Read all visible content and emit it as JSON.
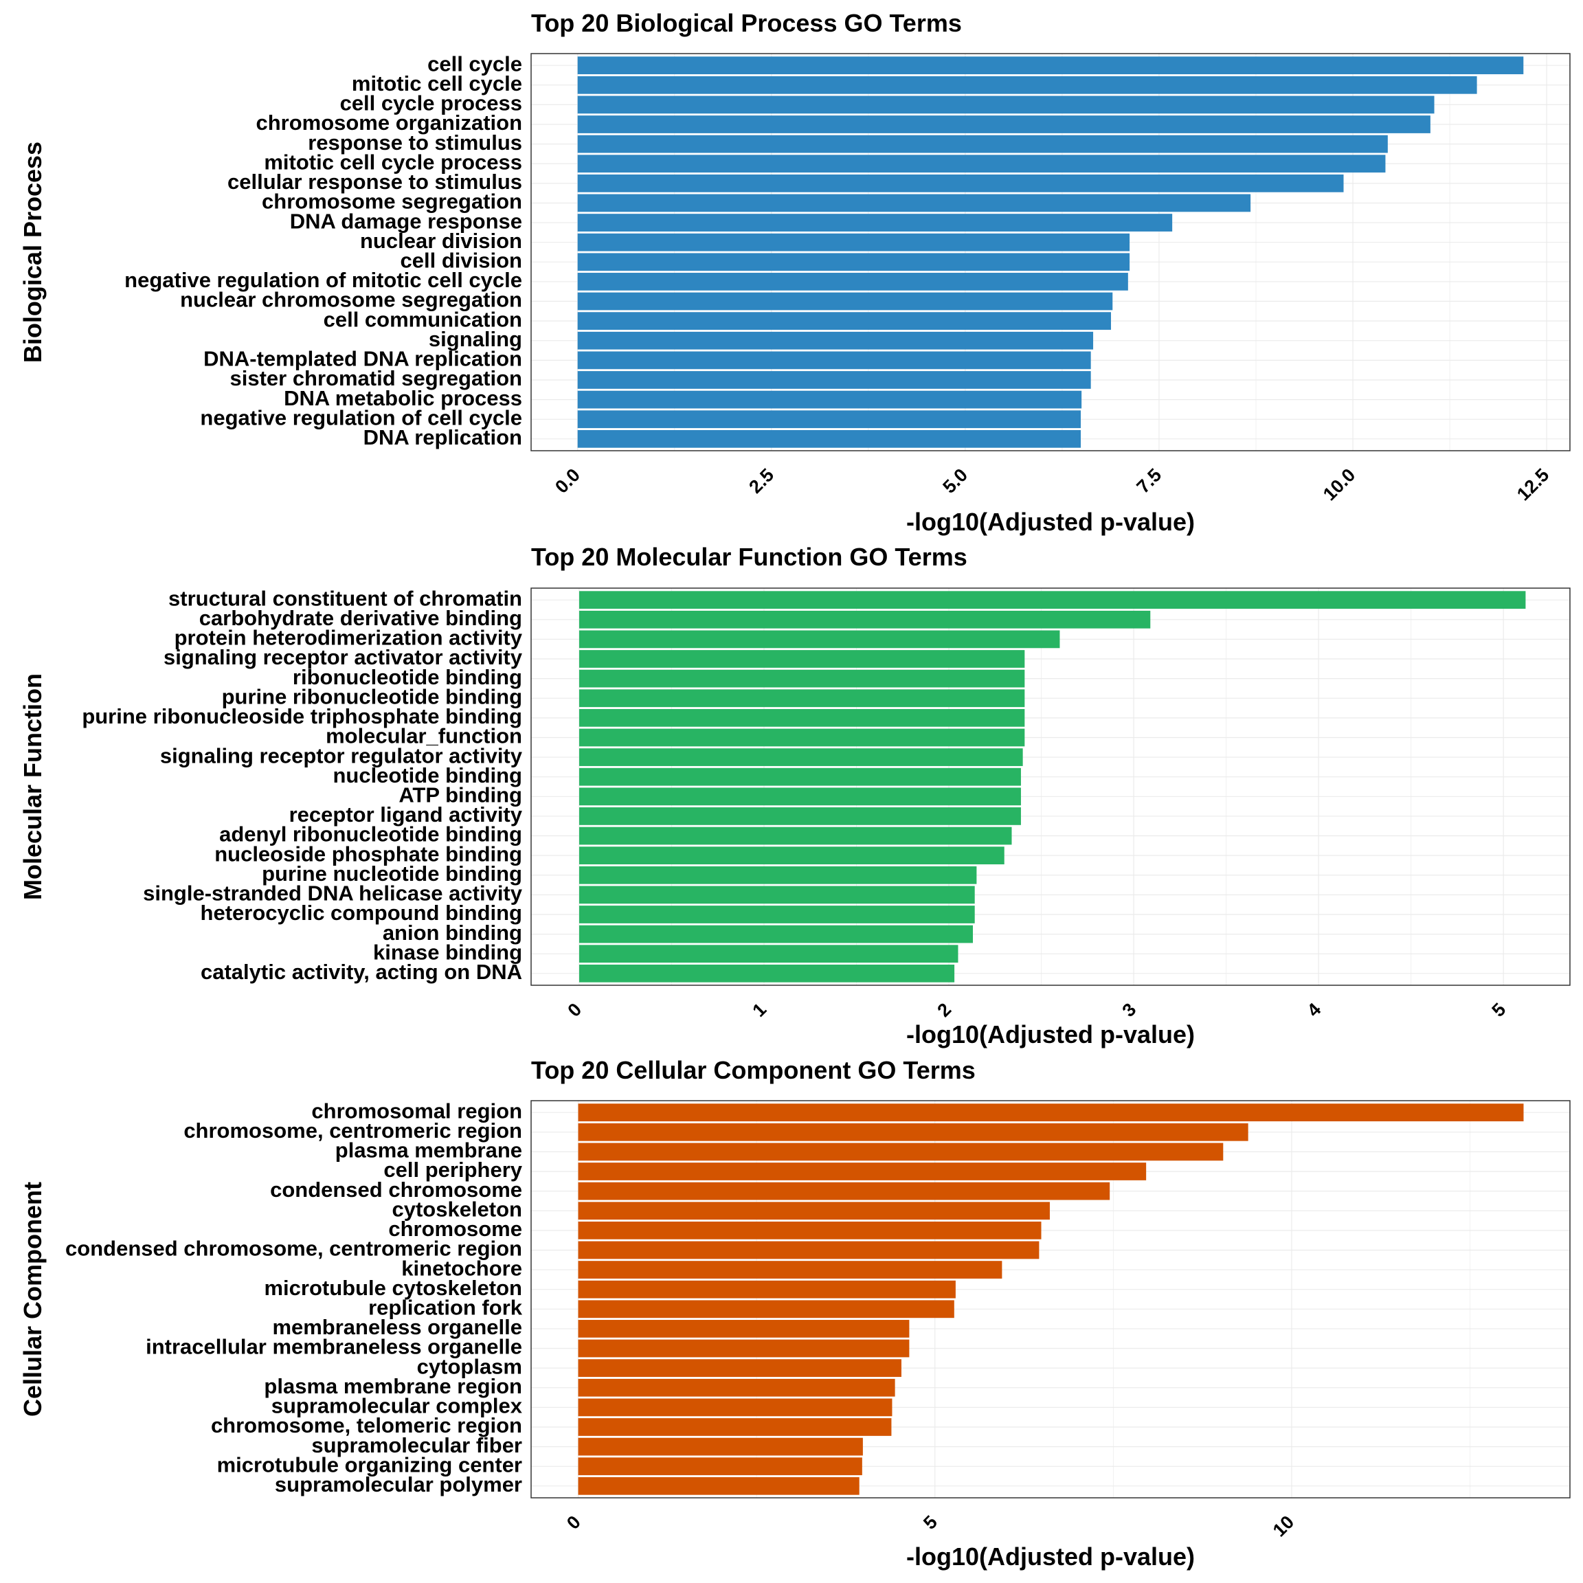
{
  "charts": [
    {
      "type": "bar",
      "orientation": "horizontal",
      "title": "Top 20 Biological Process GO Terms",
      "ylabel": "Biological Process",
      "xlabel": "-log10(Adjusted p-value)",
      "color": "#2E86C1",
      "xticks": [
        "0.0",
        "2.5",
        "5.0",
        "7.5",
        "10.0",
        "12.5"
      ],
      "xtick_values": [
        0,
        2.5,
        5,
        7.5,
        10,
        12.5
      ],
      "xlim": [
        -0.6,
        12.8
      ],
      "categories": [
        "cell cycle",
        "mitotic cell cycle",
        "cell cycle process",
        "chromosome organization",
        "response to stimulus",
        "mitotic cell cycle process",
        "cellular response to stimulus",
        "chromosome segregation",
        "DNA damage response",
        "nuclear division",
        "cell division",
        "negative regulation of mitotic cell cycle",
        "nuclear chromosome segregation",
        "cell communication",
        "signaling",
        "DNA-templated DNA replication",
        "sister chromatid segregation",
        "DNA metabolic process",
        "negative regulation of cell cycle",
        "DNA replication"
      ],
      "values": [
        12.2,
        11.6,
        11.05,
        11.0,
        10.45,
        10.42,
        9.88,
        8.68,
        7.67,
        7.12,
        7.12,
        7.1,
        6.9,
        6.88,
        6.65,
        6.62,
        6.62,
        6.5,
        6.49,
        6.49
      ]
    },
    {
      "type": "bar",
      "orientation": "horizontal",
      "title": "Top 20 Molecular Function GO Terms",
      "ylabel": "Molecular Function",
      "xlabel": "-log10(Adjusted p-value)",
      "color": "#28B463",
      "xticks": [
        "0",
        "1",
        "2",
        "3",
        "4",
        "5"
      ],
      "xtick_values": [
        0,
        1,
        2,
        3,
        4,
        5
      ],
      "xlim": [
        -0.26,
        5.36
      ],
      "categories": [
        "structural constituent of chromatin",
        "carbohydrate derivative binding",
        "protein heterodimerization activity",
        "signaling receptor activator activity",
        "ribonucleotide binding",
        "purine ribonucleotide binding",
        "purine ribonucleoside triphosphate binding",
        "molecular_function",
        "signaling receptor regulator activity",
        "nucleotide binding",
        "ATP binding",
        "receptor ligand activity",
        "adenyl ribonucleotide binding",
        "nucleoside phosphate binding",
        "purine nucleotide binding",
        "single-stranded DNA helicase activity",
        "heterocyclic compound binding",
        "anion binding",
        "kinase binding",
        "catalytic activity, acting on DNA"
      ],
      "values": [
        5.12,
        3.09,
        2.6,
        2.41,
        2.41,
        2.41,
        2.41,
        2.41,
        2.4,
        2.39,
        2.39,
        2.39,
        2.34,
        2.3,
        2.15,
        2.14,
        2.14,
        2.13,
        2.05,
        2.03
      ]
    },
    {
      "type": "bar",
      "orientation": "horizontal",
      "title": "Top 20 Cellular Component GO Terms",
      "ylabel": "Cellular Component",
      "xlabel": "-log10(Adjusted p-value)",
      "color": "#D35400",
      "xticks": [
        "0",
        "5",
        "10"
      ],
      "xtick_values": [
        0,
        5,
        10
      ],
      "xlim": [
        -0.66,
        13.9
      ],
      "categories": [
        "chromosomal region",
        "chromosome, centromeric region",
        "plasma membrane",
        "cell periphery",
        "condensed chromosome",
        "cytoskeleton",
        "chromosome",
        "condensed chromosome, centromeric region",
        "kinetochore",
        "microtubule cytoskeleton",
        "replication fork",
        "membraneless organelle",
        "intracellular membraneless organelle",
        "cytoplasm",
        "plasma membrane region",
        "supramolecular complex",
        "chromosome, telomeric region",
        "supramolecular fiber",
        "microtubule organizing center",
        "supramolecular polymer"
      ],
      "values": [
        13.25,
        9.39,
        9.04,
        7.96,
        7.45,
        6.61,
        6.49,
        6.46,
        5.94,
        5.29,
        5.27,
        4.64,
        4.64,
        4.53,
        4.44,
        4.4,
        4.39,
        3.99,
        3.98,
        3.94
      ]
    }
  ]
}
